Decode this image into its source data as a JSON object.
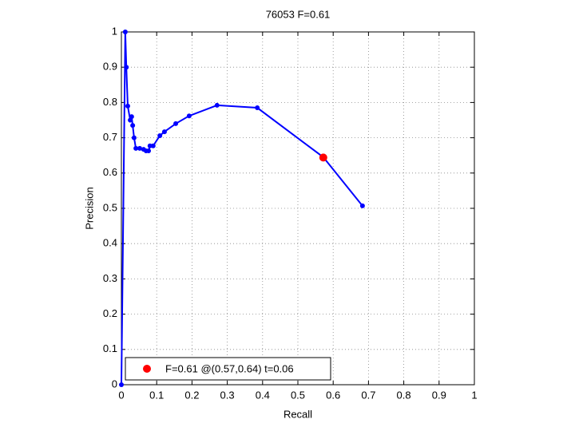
{
  "chart_data": {
    "type": "line",
    "title": "76053 F=0.61",
    "x_label": "Recall",
    "y_label": "Precision",
    "xlim": [
      0,
      1
    ],
    "ylim": [
      0,
      1
    ],
    "xticks": [
      0,
      0.1,
      0.2,
      0.3,
      0.4,
      0.5,
      0.6,
      0.7,
      0.8,
      0.9,
      1
    ],
    "yticks": [
      0,
      0.1,
      0.2,
      0.3,
      0.4,
      0.5,
      0.6,
      0.7,
      0.8,
      0.9,
      1
    ],
    "grid": true,
    "legend": "lower left",
    "series": [
      {
        "color": "#0000ff",
        "mode": "lines+markers",
        "x": [
          0,
          0.011,
          0.014,
          0.018,
          0.025,
          0.029,
          0.032,
          0.036,
          0.041,
          0.052,
          0.063,
          0.07,
          0.077,
          0.081,
          0.09,
          0.109,
          0.122,
          0.154,
          0.192,
          0.271,
          0.385,
          0.572,
          0.683
        ],
        "values": [
          0,
          1,
          0.9,
          0.79,
          0.75,
          0.76,
          0.735,
          0.7,
          0.67,
          0.67,
          0.667,
          0.663,
          0.663,
          0.677,
          0.677,
          0.706,
          0.717,
          0.74,
          0.762,
          0.792,
          0.785,
          0.645,
          0.507
        ]
      },
      {
        "name": "F=0.61 @(0.57,0.64) t=0.06",
        "color": "#ff0000",
        "mode": "markers",
        "x": [
          0.572
        ],
        "values": [
          0.644
        ]
      }
    ]
  }
}
